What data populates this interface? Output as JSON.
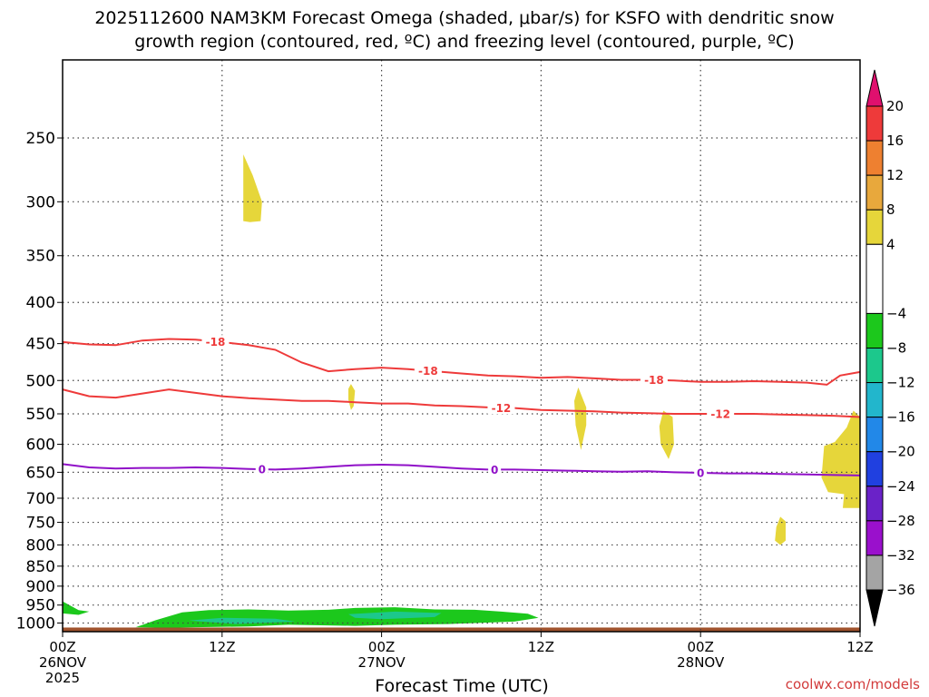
{
  "title_line1": "2025112600 NAM3KM Forecast Omega (shaded, μbar/s) for KSFO with dendritic snow",
  "title_line2": "growth region (contoured, red, ºC) and freezing level (contoured, purple, ºC)",
  "credit": "coolwx.com/models",
  "chart_data": {
    "type": "contour",
    "title": "2025112600 NAM3KM Forecast Omega (shaded, μbar/s) for KSFO with dendritic snow growth region (contoured, red, ºC) and freezing level (contoured, purple, ºC)",
    "xlabel": "Forecast Time (UTC)",
    "ylabel": "",
    "x_units": "forecast hours",
    "xlim": [
      0,
      60
    ],
    "y_units": "pressure (hPa)",
    "ylim": [
      1025,
      200
    ],
    "y_ticks": [
      250,
      300,
      350,
      400,
      450,
      500,
      550,
      600,
      650,
      700,
      750,
      800,
      850,
      900,
      950,
      1000
    ],
    "y_tick_labels": [
      "250",
      "300",
      "350",
      "400",
      "450",
      "500",
      "550",
      "600",
      "650",
      "700",
      "750",
      "800",
      "850",
      "900",
      "950",
      "1000"
    ],
    "x_ticks": [
      {
        "hour": 0,
        "lines": [
          "00Z",
          "26NOV",
          "2025"
        ]
      },
      {
        "hour": 12,
        "lines": [
          "12Z"
        ]
      },
      {
        "hour": 24,
        "lines": [
          "00Z",
          "27NOV"
        ]
      },
      {
        "hour": 36,
        "lines": [
          "12Z"
        ]
      },
      {
        "hour": 48,
        "lines": [
          "00Z",
          "28NOV"
        ]
      },
      {
        "hour": 60,
        "lines": [
          "12Z"
        ]
      }
    ],
    "grid": true,
    "colorbar": {
      "label_values": [
        "20",
        "16",
        "12",
        "8",
        "4",
        "−4",
        "−8",
        "−12",
        "−16",
        "−20",
        "−24",
        "−28",
        "−32",
        "−36"
      ],
      "over_color": "#e0106e",
      "under_color": "#000000",
      "bands": [
        {
          "from": 16,
          "to": 20,
          "color": "#ee3a3a"
        },
        {
          "from": 12,
          "to": 16,
          "color": "#ee8030"
        },
        {
          "from": 8,
          "to": 12,
          "color": "#e8a83c"
        },
        {
          "from": 4,
          "to": 8,
          "color": "#e6d63a"
        },
        {
          "from": -4,
          "to": 4,
          "color": "#ffffff"
        },
        {
          "from": -8,
          "to": -4,
          "color": "#1cc81c"
        },
        {
          "from": -12,
          "to": -8,
          "color": "#1cc88c"
        },
        {
          "from": -16,
          "to": -12,
          "color": "#22b6cc"
        },
        {
          "from": -20,
          "to": -16,
          "color": "#2288e8"
        },
        {
          "from": -24,
          "to": -20,
          "color": "#2040e0"
        },
        {
          "from": -28,
          "to": -24,
          "color": "#6a22c8"
        },
        {
          "from": -32,
          "to": -28,
          "color": "#9a10cc"
        },
        {
          "from": -36,
          "to": -32,
          "color": "#a4a4a4"
        }
      ]
    },
    "series": [
      {
        "name": "-18 °C isotherm",
        "label": "-18",
        "color": "#ee3a3a",
        "label_hours": [
          11.5,
          27.5,
          44.5
        ],
        "hours": [
          0,
          2,
          4,
          6,
          8,
          10,
          12,
          14,
          16,
          18,
          20,
          22,
          24,
          26,
          28,
          30,
          32,
          34,
          36,
          38,
          40,
          42,
          44,
          46,
          48,
          50,
          52,
          54,
          56,
          57.5,
          58.5,
          60
        ],
        "pressure": [
          448,
          451,
          452,
          446,
          444,
          445,
          448,
          452,
          458,
          475,
          487,
          484,
          482,
          484,
          487,
          490,
          493,
          494,
          496,
          495,
          497,
          499,
          499,
          500,
          502,
          502,
          501,
          502,
          503,
          506,
          493,
          488
        ]
      },
      {
        "name": "-12 °C isotherm",
        "label": "-12",
        "color": "#ee3a3a",
        "label_hours": [
          33,
          49.5
        ],
        "hours": [
          0,
          2,
          4,
          6,
          8,
          10,
          12,
          14,
          16,
          18,
          20,
          22,
          24,
          26,
          28,
          30,
          32,
          34,
          36,
          38,
          40,
          42,
          44,
          46,
          48,
          50,
          52,
          54,
          56,
          58,
          60
        ],
        "pressure": [
          513,
          523,
          525,
          519,
          513,
          518,
          523,
          526,
          528,
          530,
          530,
          532,
          534,
          534,
          537,
          538,
          540,
          541,
          544,
          545,
          546,
          548,
          549,
          550,
          550,
          550,
          550,
          551,
          552,
          553,
          555
        ]
      },
      {
        "name": "0 °C isotherm (freezing level)",
        "label": "0",
        "color": "#9010c8",
        "label_hours": [
          15,
          32.5,
          48
        ],
        "hours": [
          0,
          2,
          4,
          6,
          8,
          10,
          12,
          14,
          16,
          18,
          20,
          22,
          24,
          26,
          28,
          30,
          32,
          34,
          36,
          38,
          40,
          42,
          44,
          46,
          48,
          50,
          52,
          54,
          56,
          58,
          60
        ],
        "pressure": [
          635,
          641,
          643,
          642,
          642,
          641,
          642,
          644,
          645,
          643,
          640,
          637,
          636,
          637,
          640,
          643,
          645,
          645,
          646,
          647,
          648,
          649,
          648,
          650,
          651,
          652,
          652,
          653,
          654,
          655,
          656
        ]
      }
    ],
    "shaded_regions": [
      {
        "omega_band": "4 to 8",
        "color": "#e6d63a",
        "points": [
          [
            13.6,
            262
          ],
          [
            14.3,
            278
          ],
          [
            15.0,
            300
          ],
          [
            14.9,
            317
          ],
          [
            14.1,
            318
          ],
          [
            13.6,
            317
          ]
        ]
      },
      {
        "omega_band": "4 to 8",
        "color": "#e6d63a",
        "points": [
          [
            21.7,
            505
          ],
          [
            22.0,
            515
          ],
          [
            21.9,
            538
          ],
          [
            21.7,
            544
          ],
          [
            21.5,
            528
          ],
          [
            21.5,
            512
          ]
        ]
      },
      {
        "omega_band": "4 to 8",
        "color": "#e6d63a",
        "points": [
          [
            38.8,
            510
          ],
          [
            39.4,
            540
          ],
          [
            39.4,
            568
          ],
          [
            39.0,
            610
          ],
          [
            38.6,
            568
          ],
          [
            38.5,
            530
          ]
        ]
      },
      {
        "omega_band": "4 to 8",
        "color": "#e6d63a",
        "points": [
          [
            45.2,
            545
          ],
          [
            45.9,
            555
          ],
          [
            46.0,
            600
          ],
          [
            45.6,
            626
          ],
          [
            45.0,
            600
          ],
          [
            44.9,
            570
          ]
        ]
      },
      {
        "omega_band": "4 to 8",
        "color": "#e6d63a",
        "points": [
          [
            57.3,
            603
          ],
          [
            58.1,
            596
          ],
          [
            59.0,
            572
          ],
          [
            59.5,
            545
          ],
          [
            60.0,
            555
          ],
          [
            60.0,
            720
          ],
          [
            58.7,
            720
          ],
          [
            58.8,
            692
          ],
          [
            57.6,
            688
          ],
          [
            57.1,
            660
          ]
        ]
      },
      {
        "omega_band": "4 to 8",
        "color": "#e6d63a",
        "points": [
          [
            54.0,
            738
          ],
          [
            54.4,
            748
          ],
          [
            54.4,
            790
          ],
          [
            54.0,
            800
          ],
          [
            53.6,
            790
          ],
          [
            53.7,
            760
          ]
        ]
      },
      {
        "omega_band": "-8 to -4",
        "color": "#1cc81c",
        "points": [
          [
            0,
            940
          ],
          [
            1.2,
            964
          ],
          [
            2.0,
            968
          ],
          [
            1.2,
            977
          ],
          [
            0,
            973
          ]
        ]
      },
      {
        "omega_band": "-8 to -4",
        "color": "#1cc81c",
        "points": [
          [
            5.5,
            1012
          ],
          [
            7.0,
            992
          ],
          [
            9.0,
            970
          ],
          [
            11.0,
            964
          ],
          [
            14.0,
            962
          ],
          [
            17.0,
            965
          ],
          [
            20.0,
            963
          ],
          [
            22.0,
            958
          ],
          [
            25.0,
            956
          ],
          [
            28.0,
            962
          ],
          [
            31.0,
            963
          ],
          [
            33.0,
            968
          ],
          [
            35.0,
            974
          ],
          [
            35.8,
            985
          ],
          [
            34.0,
            996
          ],
          [
            29.0,
            1003
          ],
          [
            25.0,
            1005
          ],
          [
            22.0,
            1008
          ],
          [
            17.0,
            1005
          ],
          [
            14.0,
            1010
          ],
          [
            10.0,
            1012
          ],
          [
            8.0,
            1014
          ]
        ]
      },
      {
        "omega_band": "-12 to -8",
        "color": "#1cc88c",
        "points": [
          [
            9.5,
            993
          ],
          [
            12.0,
            985
          ],
          [
            16.0,
            988
          ],
          [
            17.5,
            996
          ],
          [
            13.0,
            1003
          ]
        ]
      },
      {
        "omega_band": "-12 to -8",
        "color": "#1cc88c",
        "points": [
          [
            21.5,
            975
          ],
          [
            25.0,
            968
          ],
          [
            28.5,
            972
          ],
          [
            28.0,
            983
          ],
          [
            24.0,
            989
          ],
          [
            22.0,
            985
          ]
        ]
      }
    ],
    "ground": {
      "pressure_top": 1013,
      "color": "#a0522d"
    }
  }
}
